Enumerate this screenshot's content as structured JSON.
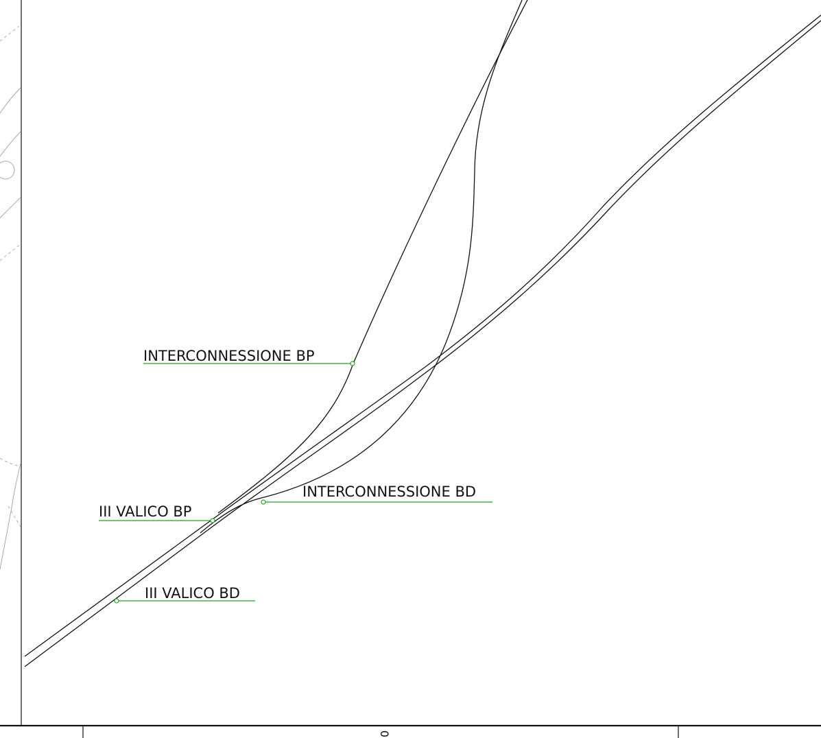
{
  "labels": {
    "interconnessione_bp": "INTERCONNESSIONE BP",
    "interconnessione_bd": "INTERCONNESSIONE BD",
    "iii_valico_bp": "III VALICO BP",
    "iii_valico_bd": "III VALICO BD"
  },
  "bottom_mark": "0",
  "colors": {
    "track": "#111111",
    "leader": "#22a022",
    "background_lines": "#a8a8a8"
  }
}
